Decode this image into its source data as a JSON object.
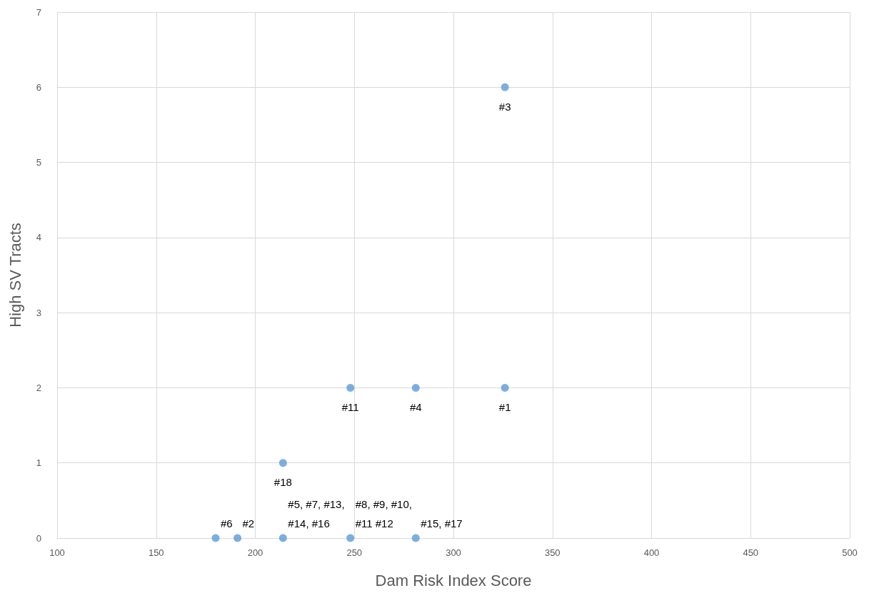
{
  "chart_data": {
    "type": "scatter",
    "xlabel": "Dam Risk Index Score",
    "ylabel": "High SV Tracts",
    "x": [
      180,
      191,
      214,
      214,
      248,
      248,
      281,
      281,
      326,
      326
    ],
    "values": [
      0,
      0,
      0,
      1,
      0,
      2,
      0,
      2,
      2,
      6
    ],
    "annotations": [
      {
        "text": "#6",
        "x": 180,
        "y": 0
      },
      {
        "text": "#2",
        "x": 191,
        "y": 0
      },
      {
        "text": "#5, #7, #13,\n#14, #16",
        "x": 214,
        "y": 0
      },
      {
        "text": "#18",
        "x": 214,
        "y": 1
      },
      {
        "text": "#8, #9, #10,\n#11 #12",
        "x": 248,
        "y": 0
      },
      {
        "text": "#11",
        "x": 248,
        "y": 2
      },
      {
        "text": "#15, #17",
        "x": 281,
        "y": 0
      },
      {
        "text": "#4",
        "x": 281,
        "y": 2
      },
      {
        "text": "#1",
        "x": 326,
        "y": 2
      },
      {
        "text": "#3",
        "x": 326,
        "y": 6
      }
    ],
    "color": "#5b9bd5",
    "marker": "circle",
    "xlim": [
      100,
      500
    ],
    "xticks": [
      100,
      150,
      200,
      250,
      300,
      350,
      400,
      450,
      500
    ],
    "ylim": [
      0,
      7
    ],
    "yticks": [
      0,
      1,
      2,
      3,
      4,
      5,
      6,
      7
    ],
    "grid": true
  }
}
